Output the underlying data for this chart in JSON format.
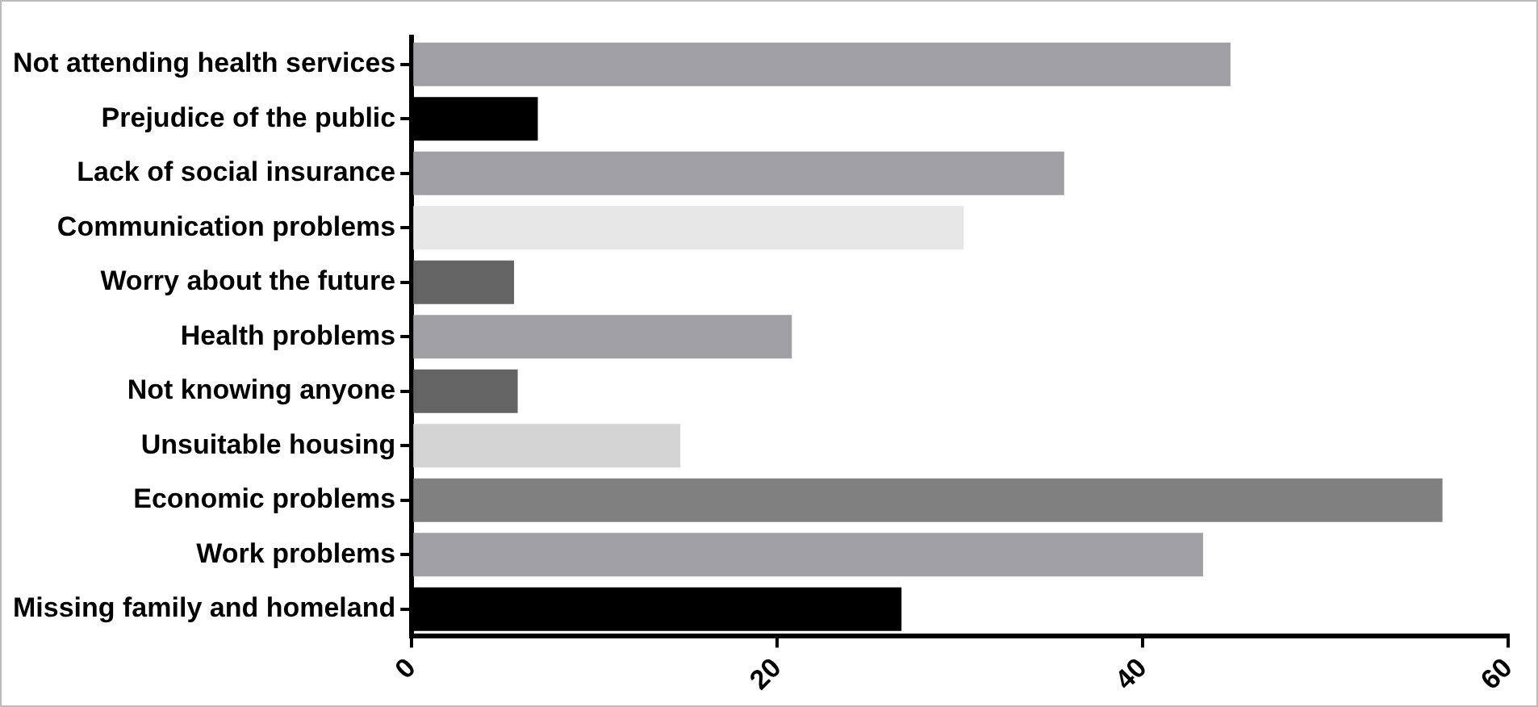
{
  "chart_data": {
    "type": "bar",
    "orientation": "horizontal",
    "categories": [
      "Not attending health services",
      "Prejudice of the public",
      "Lack of social insurance",
      "Communication problems",
      "Worry about the future",
      "Health problems",
      "Not knowing anyone",
      "Unsuitable housing",
      "Economic problems",
      "Work problems",
      "Missing family and homeland"
    ],
    "values": [
      44.8,
      6.9,
      35.7,
      30.2,
      5.6,
      20.8,
      5.8,
      14.7,
      56.4,
      43.3,
      26.8
    ],
    "colors": [
      "#a0a0a4",
      "#000000",
      "#a0a0a4",
      "#e6e6e6",
      "#646464",
      "#a0a0a4",
      "#646464",
      "#d4d4d4",
      "#808080",
      "#a0a0a4",
      "#000000"
    ],
    "xlim": [
      0,
      60
    ],
    "xticks": [
      0,
      20,
      40,
      60
    ]
  }
}
